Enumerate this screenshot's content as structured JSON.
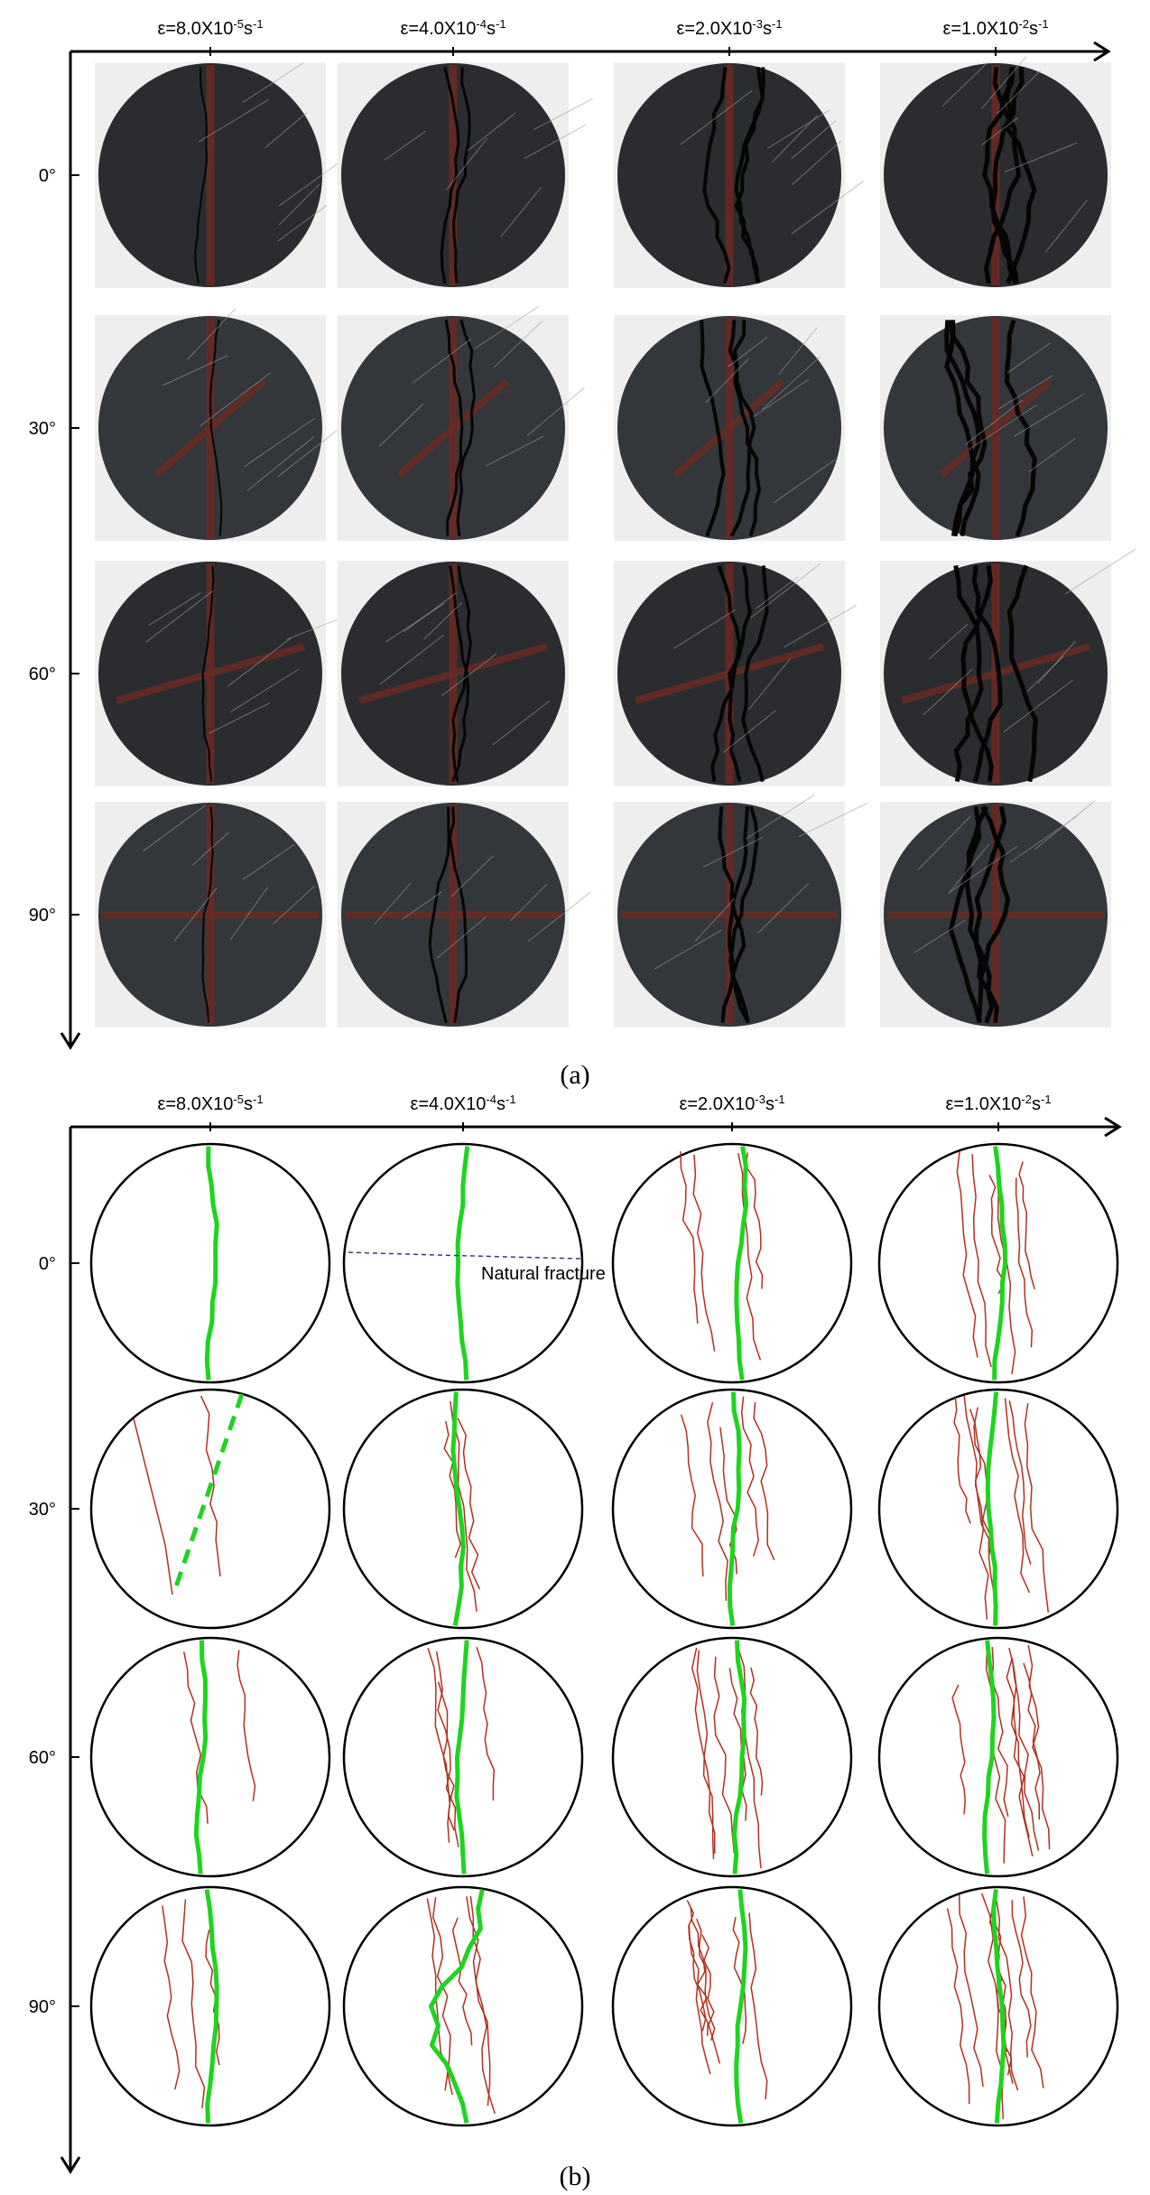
{
  "panel_a": {
    "label": "(a)",
    "columns": [
      {
        "prefix": "ε=8.0X10",
        "exponent": "-5",
        "unit": "s",
        "unit_exponent": "-1"
      },
      {
        "prefix": "ε=4.0X10",
        "exponent": "-4",
        "unit": "s",
        "unit_exponent": "-1"
      },
      {
        "prefix": "ε=2.0X10",
        "exponent": "-3",
        "unit": "s",
        "unit_exponent": "-1"
      },
      {
        "prefix": "ε=1.0X10",
        "exponent": "-2",
        "unit": "s",
        "unit_exponent": "-1"
      }
    ],
    "rows": [
      "0°",
      "30°",
      "60°",
      "90°"
    ]
  },
  "panel_b": {
    "label": "(b)",
    "columns": [
      {
        "prefix": "ε=8.0X10",
        "exponent": "-5",
        "unit": "s",
        "unit_exponent": "-1"
      },
      {
        "prefix": "ε=4.0X10",
        "exponent": "-4",
        "unit": "s",
        "unit_exponent": "-1"
      },
      {
        "prefix": "ε=2.0X10",
        "exponent": "-3",
        "unit": "s",
        "unit_exponent": "-1"
      },
      {
        "prefix": "ε=1.0X10",
        "exponent": "-2",
        "unit": "s",
        "unit_exponent": "-1"
      }
    ],
    "rows": [
      "0°",
      "30°",
      "60°",
      "90°"
    ],
    "annotation": "Natural fracture"
  }
}
